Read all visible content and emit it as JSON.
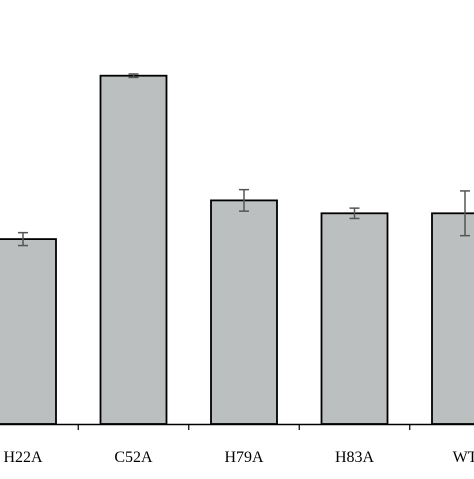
{
  "chart_data": {
    "type": "bar",
    "categories": [
      "H22A",
      "C52A",
      "H79A",
      "H83A",
      "WT"
    ],
    "values": [
      0.43,
      0.81,
      0.52,
      0.49,
      0.49
    ],
    "errors": [
      0.015,
      0.004,
      0.025,
      0.012,
      0.052
    ],
    "title": "",
    "xlabel": "",
    "ylabel": "",
    "ylim": [
      0,
      1.0
    ],
    "grid": false,
    "legend": "none",
    "colors": {
      "bar_fill": "#bbbfbf",
      "bar_stroke": "#000000",
      "error_bar": "#555555",
      "axis": "#000000"
    }
  }
}
